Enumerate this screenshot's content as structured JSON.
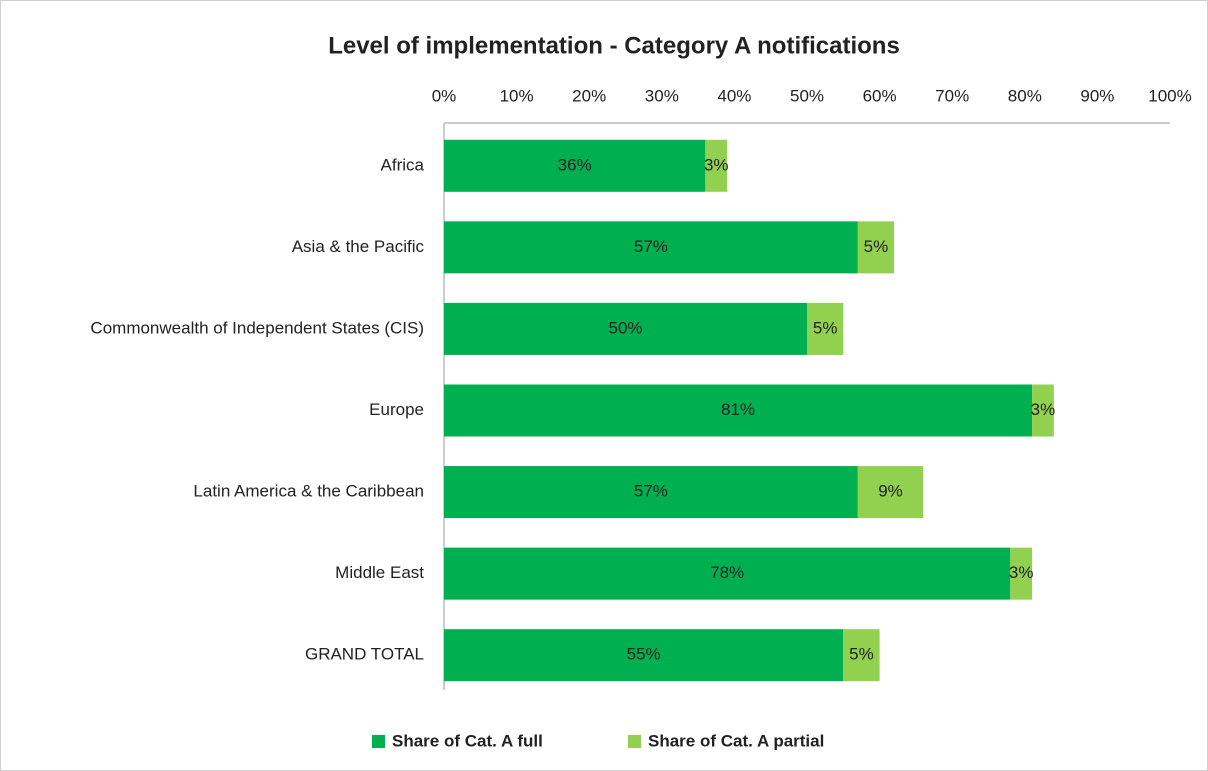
{
  "chart_data": {
    "type": "hbar-stacked",
    "title": "Level of implementation - Category A notifications",
    "categories": [
      "Africa",
      "Asia & the Pacific",
      "Commonwealth of Independent States (CIS)",
      "Europe",
      "Latin America & the Caribbean",
      "Middle East",
      "GRAND TOTAL"
    ],
    "series": [
      {
        "name": "Share of Cat. A full",
        "color": "#00b050",
        "values": [
          36,
          57,
          50,
          81,
          57,
          78,
          55
        ],
        "value_labels": [
          "36%",
          "57%",
          "50%",
          "81%",
          "57%",
          "78%",
          "55%"
        ]
      },
      {
        "name": "Share of Cat. A partial",
        "color": "#92d050",
        "values": [
          3,
          5,
          5,
          3,
          9,
          3,
          5
        ],
        "value_labels": [
          "3%",
          "5%",
          "5%",
          "3%",
          "9%",
          "3%",
          "5%"
        ]
      }
    ],
    "xlim": [
      0,
      100
    ],
    "xticks": [
      {
        "value": 0,
        "label": "0%"
      },
      {
        "value": 10,
        "label": "10%"
      },
      {
        "value": 20,
        "label": "20%"
      },
      {
        "value": 30,
        "label": "30%"
      },
      {
        "value": 40,
        "label": "40%"
      },
      {
        "value": 50,
        "label": "50%"
      },
      {
        "value": 60,
        "label": "60%"
      },
      {
        "value": 70,
        "label": "70%"
      },
      {
        "value": 80,
        "label": "80%"
      },
      {
        "value": 90,
        "label": "90%"
      },
      {
        "value": 100,
        "label": "100%"
      }
    ],
    "legend": "bottom"
  }
}
